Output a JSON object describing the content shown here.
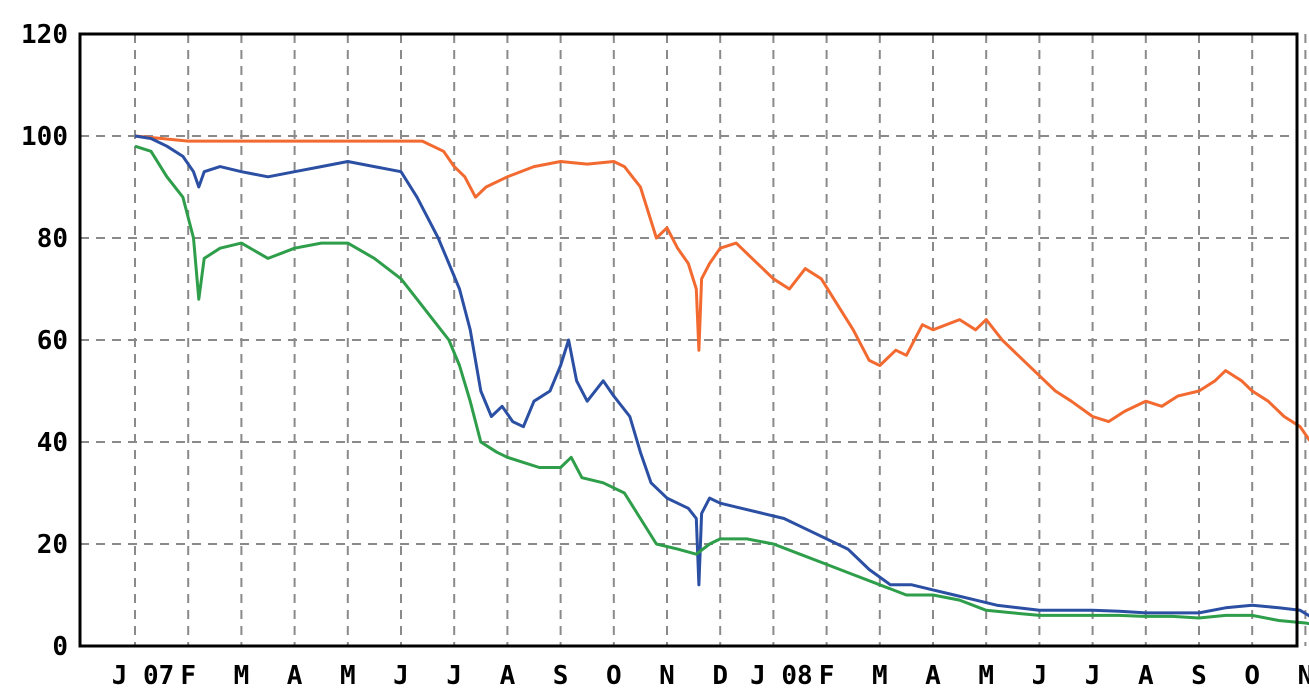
{
  "chart_data": {
    "type": "line",
    "title": "",
    "xlabel": "",
    "ylabel": "",
    "ylim": [
      0,
      120
    ],
    "yticks": [
      0,
      20,
      40,
      60,
      80,
      100,
      120
    ],
    "x_tick_labels": [
      "J 07",
      "F",
      "M",
      "A",
      "M",
      "J",
      "J",
      "A",
      "S",
      "O",
      "N",
      "D",
      "J 08",
      "F",
      "M",
      "A",
      "M",
      "J",
      "J",
      "A",
      "S",
      "O",
      "N"
    ],
    "grid": true,
    "legend": "none",
    "series": [
      {
        "color": "#f26a30",
        "points": [
          [
            0,
            100
          ],
          [
            0.5,
            99.5
          ],
          [
            1,
            99
          ],
          [
            2,
            99
          ],
          [
            3,
            99
          ],
          [
            4,
            99
          ],
          [
            5,
            99
          ],
          [
            5.4,
            99
          ],
          [
            5.8,
            97
          ],
          [
            6,
            94
          ],
          [
            6.2,
            92
          ],
          [
            6.4,
            88
          ],
          [
            6.6,
            90
          ],
          [
            7,
            92
          ],
          [
            7.5,
            94
          ],
          [
            8,
            95
          ],
          [
            8.5,
            94.5
          ],
          [
            9,
            95
          ],
          [
            9.2,
            94
          ],
          [
            9.5,
            90
          ],
          [
            9.8,
            80
          ],
          [
            10,
            82
          ],
          [
            10.2,
            78
          ],
          [
            10.4,
            75
          ],
          [
            10.55,
            70
          ],
          [
            10.6,
            58
          ],
          [
            10.65,
            72
          ],
          [
            10.8,
            75
          ],
          [
            11,
            78
          ],
          [
            11.3,
            79
          ],
          [
            11.6,
            76
          ],
          [
            12,
            72
          ],
          [
            12.3,
            70
          ],
          [
            12.6,
            74
          ],
          [
            12.9,
            72
          ],
          [
            13.2,
            67
          ],
          [
            13.5,
            62
          ],
          [
            13.8,
            56
          ],
          [
            14,
            55
          ],
          [
            14.3,
            58
          ],
          [
            14.5,
            57
          ],
          [
            14.8,
            63
          ],
          [
            15,
            62
          ],
          [
            15.5,
            64
          ],
          [
            15.8,
            62
          ],
          [
            16,
            64
          ],
          [
            16.3,
            60
          ],
          [
            16.6,
            57
          ],
          [
            17,
            53
          ],
          [
            17.3,
            50
          ],
          [
            17.6,
            48
          ],
          [
            18,
            45
          ],
          [
            18.3,
            44
          ],
          [
            18.6,
            46
          ],
          [
            19,
            48
          ],
          [
            19.3,
            47
          ],
          [
            19.6,
            49
          ],
          [
            20,
            50
          ],
          [
            20.3,
            52
          ],
          [
            20.5,
            54
          ],
          [
            20.8,
            52
          ],
          [
            21,
            50
          ],
          [
            21.3,
            48
          ],
          [
            21.6,
            45
          ],
          [
            21.9,
            43
          ],
          [
            22.1,
            40
          ],
          [
            22.3,
            36
          ]
        ]
      },
      {
        "color": "#2b4fa3",
        "points": [
          [
            0,
            100
          ],
          [
            0.3,
            99.5
          ],
          [
            0.6,
            98
          ],
          [
            0.9,
            96
          ],
          [
            1.1,
            93
          ],
          [
            1.2,
            90
          ],
          [
            1.3,
            93
          ],
          [
            1.6,
            94
          ],
          [
            2,
            93
          ],
          [
            2.5,
            92
          ],
          [
            3,
            93
          ],
          [
            3.5,
            94
          ],
          [
            4,
            95
          ],
          [
            4.5,
            94
          ],
          [
            5,
            93
          ],
          [
            5.3,
            88
          ],
          [
            5.5,
            84
          ],
          [
            5.7,
            80
          ],
          [
            5.9,
            75
          ],
          [
            6.1,
            70
          ],
          [
            6.3,
            62
          ],
          [
            6.5,
            50
          ],
          [
            6.7,
            45
          ],
          [
            6.9,
            47
          ],
          [
            7.1,
            44
          ],
          [
            7.3,
            43
          ],
          [
            7.5,
            48
          ],
          [
            7.8,
            50
          ],
          [
            8,
            55
          ],
          [
            8.15,
            60
          ],
          [
            8.3,
            52
          ],
          [
            8.5,
            48
          ],
          [
            8.8,
            52
          ],
          [
            9,
            49
          ],
          [
            9.3,
            45
          ],
          [
            9.5,
            38
          ],
          [
            9.7,
            32
          ],
          [
            10,
            29
          ],
          [
            10.2,
            28
          ],
          [
            10.4,
            27
          ],
          [
            10.55,
            25
          ],
          [
            10.6,
            12
          ],
          [
            10.65,
            26
          ],
          [
            10.8,
            29
          ],
          [
            11,
            28
          ],
          [
            11.4,
            27
          ],
          [
            11.8,
            26
          ],
          [
            12.2,
            25
          ],
          [
            12.6,
            23
          ],
          [
            13,
            21
          ],
          [
            13.4,
            19
          ],
          [
            13.8,
            15
          ],
          [
            14.2,
            12
          ],
          [
            14.6,
            12
          ],
          [
            15,
            11
          ],
          [
            15.4,
            10
          ],
          [
            15.8,
            9
          ],
          [
            16.2,
            8
          ],
          [
            16.6,
            7.5
          ],
          [
            17,
            7
          ],
          [
            17.5,
            7
          ],
          [
            18,
            7
          ],
          [
            18.5,
            6.8
          ],
          [
            19,
            6.5
          ],
          [
            19.5,
            6.5
          ],
          [
            20,
            6.5
          ],
          [
            20.5,
            7.5
          ],
          [
            21,
            8
          ],
          [
            21.5,
            7.5
          ],
          [
            21.9,
            7
          ],
          [
            22.3,
            4.5
          ]
        ]
      },
      {
        "color": "#2e9e4a",
        "points": [
          [
            0,
            98
          ],
          [
            0.3,
            97
          ],
          [
            0.6,
            92
          ],
          [
            0.9,
            88
          ],
          [
            1.1,
            80
          ],
          [
            1.2,
            68
          ],
          [
            1.3,
            76
          ],
          [
            1.6,
            78
          ],
          [
            2,
            79
          ],
          [
            2.5,
            76
          ],
          [
            3,
            78
          ],
          [
            3.5,
            79
          ],
          [
            4,
            79
          ],
          [
            4.5,
            76
          ],
          [
            5,
            72
          ],
          [
            5.3,
            68
          ],
          [
            5.6,
            64
          ],
          [
            5.9,
            60
          ],
          [
            6.1,
            55
          ],
          [
            6.3,
            48
          ],
          [
            6.5,
            40
          ],
          [
            6.8,
            38
          ],
          [
            7,
            37
          ],
          [
            7.3,
            36
          ],
          [
            7.6,
            35
          ],
          [
            8,
            35
          ],
          [
            8.2,
            37
          ],
          [
            8.4,
            33
          ],
          [
            8.8,
            32
          ],
          [
            9.2,
            30
          ],
          [
            9.5,
            25
          ],
          [
            9.8,
            20
          ],
          [
            10.2,
            19
          ],
          [
            10.55,
            18
          ],
          [
            10.8,
            20
          ],
          [
            11,
            21
          ],
          [
            11.5,
            21
          ],
          [
            12,
            20
          ],
          [
            12.5,
            18
          ],
          [
            13,
            16
          ],
          [
            13.5,
            14
          ],
          [
            14,
            12
          ],
          [
            14.5,
            10
          ],
          [
            15,
            10
          ],
          [
            15.5,
            9
          ],
          [
            16,
            7
          ],
          [
            16.5,
            6.5
          ],
          [
            17,
            6
          ],
          [
            17.5,
            6
          ],
          [
            18,
            6
          ],
          [
            18.5,
            6
          ],
          [
            19,
            5.8
          ],
          [
            19.5,
            5.8
          ],
          [
            20,
            5.5
          ],
          [
            20.5,
            6
          ],
          [
            21,
            6
          ],
          [
            21.5,
            5
          ],
          [
            22,
            4.5
          ],
          [
            22.3,
            4
          ]
        ]
      }
    ]
  }
}
